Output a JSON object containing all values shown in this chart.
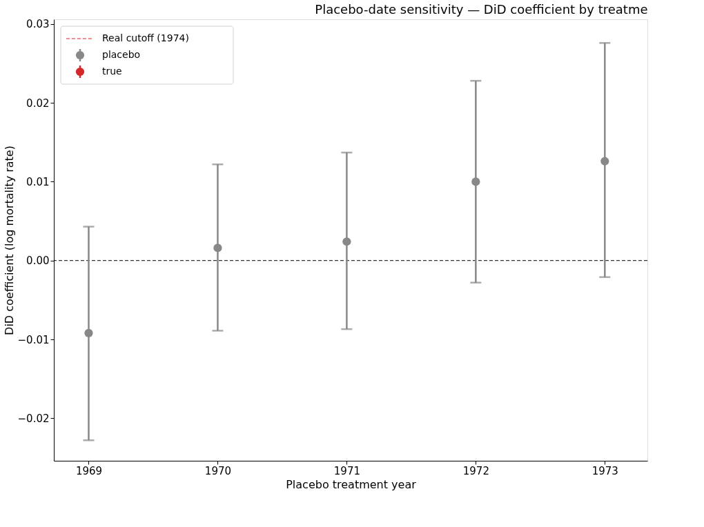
{
  "chart_data": {
    "type": "scatter",
    "title": "Placebo-date sensitivity — DiD coefficient by treatme",
    "xlabel": "Placebo treatment year",
    "ylabel": "DiD coefficient (log mortality rate)",
    "x": [
      1969,
      1970,
      1971,
      1972,
      1973
    ],
    "series": [
      {
        "name": "Real cutoff (1974)",
        "type": "line",
        "line_style": "dashed",
        "color": "#d62728",
        "values": [
          null,
          null,
          null,
          null,
          null
        ]
      },
      {
        "name": "placebo",
        "color": "#888888",
        "values": [
          -0.0092,
          0.0016,
          0.0024,
          0.01,
          0.0126
        ],
        "errors": [
          [
            -0.0228,
            0.0043
          ],
          [
            -0.0089,
            0.0122
          ],
          [
            -0.0087,
            0.0137
          ],
          [
            -0.0028,
            0.0228
          ],
          [
            -0.0021,
            0.0276
          ]
        ]
      },
      {
        "name": "true",
        "color": "#d62728",
        "values": [
          null,
          null,
          null,
          null,
          null
        ]
      }
    ],
    "ref_lines": [
      {
        "axis": "y",
        "value": 0,
        "color": "#000000",
        "line_style": "dashed"
      }
    ],
    "xlim": [
      1968.73,
      1973.33
    ],
    "xticks": [
      1969,
      1970,
      1971,
      1972,
      1973
    ],
    "ylim": [
      -0.0254,
      0.0306
    ],
    "yticks": [
      {
        "value": -0.02,
        "label": "−0.02"
      },
      {
        "value": -0.01,
        "label": "−0.01"
      },
      {
        "value": 0,
        "label": "0.00"
      },
      {
        "value": 0.01,
        "label": "0.01"
      },
      {
        "value": 0.02,
        "label": "0.02"
      },
      {
        "value": 0.03,
        "label": "0.03"
      }
    ],
    "grid": false,
    "legend": "top left",
    "marker": "circle"
  }
}
